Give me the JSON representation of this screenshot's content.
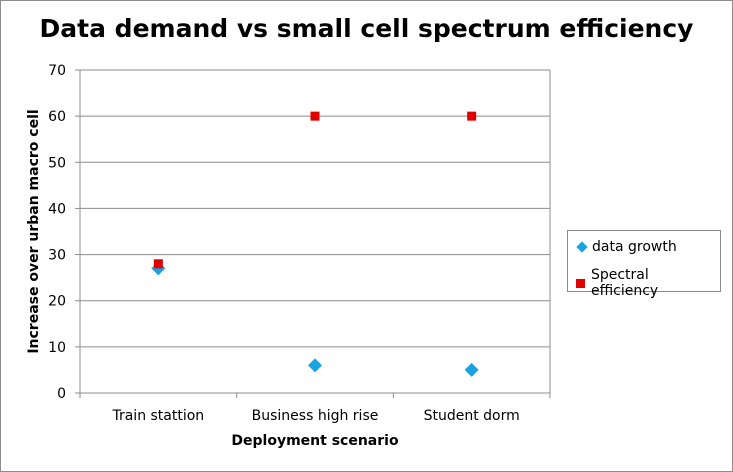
{
  "chart_data": {
    "type": "scatter",
    "title": "Data demand vs small cell spectrum efficiency",
    "xlabel": "Deployment scenario",
    "ylabel": "Increase over urban macro cell",
    "categories": [
      "Train stattion",
      "Business high rise",
      "Student dorm"
    ],
    "ylim": [
      0,
      70
    ],
    "yticks": [
      0,
      10,
      20,
      30,
      40,
      50,
      60,
      70
    ],
    "grid": true,
    "legend_position": "right",
    "series": [
      {
        "name": "data growth",
        "marker": "diamond",
        "color": "#1aa3e0",
        "values": [
          27,
          6,
          5
        ]
      },
      {
        "name": "Spectral efficiency",
        "marker": "square",
        "color": "#e00000",
        "values": [
          28,
          60,
          60
        ]
      }
    ]
  }
}
